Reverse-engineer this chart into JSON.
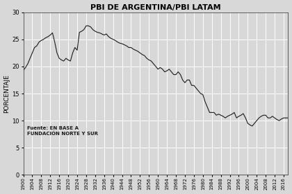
{
  "title": "PBI DE ARGENTINA/PBI LATAM",
  "ylabel": "PORCENTAJE",
  "source_text": "Fuente: EN BASE A\nFUNDACIÓN NORTE Y SUR",
  "xlim": [
    1900,
    2018
  ],
  "ylim": [
    0,
    30
  ],
  "yticks": [
    0,
    5,
    10,
    15,
    20,
    25,
    30
  ],
  "line_color": "#1a1a1a",
  "background_color": "#d8d8d8",
  "plot_bg_color": "#d8d8d8",
  "grid_color": "#ffffff",
  "years": [
    1900,
    1901,
    1902,
    1903,
    1904,
    1905,
    1906,
    1907,
    1908,
    1909,
    1910,
    1911,
    1912,
    1913,
    1914,
    1915,
    1916,
    1917,
    1918,
    1919,
    1920,
    1921,
    1922,
    1923,
    1924,
    1925,
    1926,
    1927,
    1928,
    1929,
    1930,
    1931,
    1932,
    1933,
    1934,
    1935,
    1936,
    1937,
    1938,
    1939,
    1940,
    1941,
    1942,
    1943,
    1944,
    1945,
    1946,
    1947,
    1948,
    1949,
    1950,
    1951,
    1952,
    1953,
    1954,
    1955,
    1956,
    1957,
    1958,
    1959,
    1960,
    1961,
    1962,
    1963,
    1964,
    1965,
    1966,
    1967,
    1968,
    1969,
    1970,
    1971,
    1972,
    1973,
    1974,
    1975,
    1976,
    1977,
    1978,
    1979,
    1980,
    1981,
    1982,
    1983,
    1984,
    1985,
    1986,
    1987,
    1988,
    1989,
    1990,
    1991,
    1992,
    1993,
    1994,
    1995,
    1996,
    1997,
    1998,
    1999,
    2000,
    2001,
    2002,
    2003,
    2004,
    2005,
    2006,
    2007,
    2008,
    2009,
    2010,
    2011,
    2012,
    2013,
    2014,
    2015,
    2016,
    2017,
    2018
  ],
  "values": [
    19.3,
    19.8,
    20.5,
    21.5,
    22.5,
    23.5,
    23.8,
    24.5,
    24.8,
    25.0,
    25.3,
    25.5,
    25.8,
    26.2,
    24.5,
    22.5,
    21.5,
    21.2,
    21.0,
    21.5,
    21.2,
    21.0,
    22.5,
    23.5,
    23.0,
    26.3,
    26.5,
    26.8,
    27.5,
    27.5,
    27.3,
    26.8,
    26.5,
    26.3,
    26.2,
    26.0,
    25.8,
    26.0,
    25.5,
    25.2,
    25.0,
    24.8,
    24.5,
    24.3,
    24.2,
    24.0,
    23.8,
    23.5,
    23.5,
    23.2,
    23.0,
    22.8,
    22.5,
    22.2,
    22.0,
    21.5,
    21.2,
    21.0,
    20.5,
    20.0,
    19.5,
    19.8,
    19.5,
    19.0,
    19.2,
    19.5,
    19.0,
    18.5,
    18.5,
    19.0,
    18.5,
    17.5,
    17.0,
    17.5,
    17.5,
    16.5,
    16.5,
    16.0,
    15.5,
    15.0,
    14.8,
    13.5,
    12.5,
    11.5,
    11.5,
    11.5,
    11.0,
    11.2,
    11.0,
    10.8,
    10.5,
    10.8,
    11.0,
    11.2,
    11.5,
    10.5,
    10.8,
    11.0,
    11.3,
    10.5,
    9.5,
    9.2,
    9.0,
    9.5,
    10.0,
    10.5,
    10.8,
    11.0,
    11.0,
    10.5,
    10.5,
    10.8,
    10.5,
    10.2,
    10.0,
    10.3,
    10.5,
    10.5,
    10.5
  ]
}
